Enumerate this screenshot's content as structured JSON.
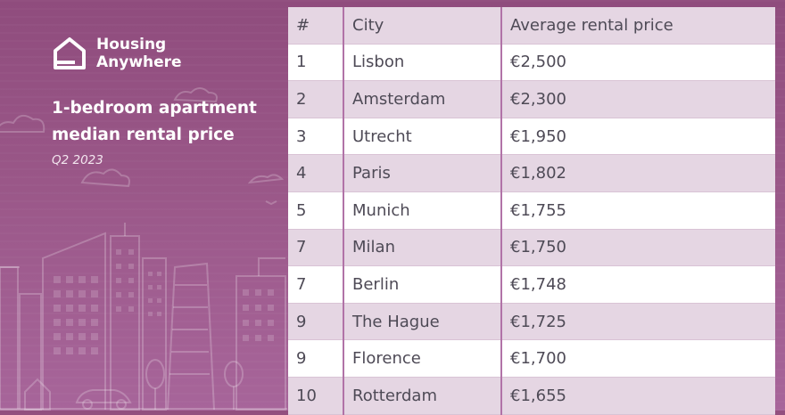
{
  "brand": {
    "name_line1": "Housing",
    "name_line2": "Anywhere",
    "logo_icon": "house-icon"
  },
  "heading": {
    "line1": "1-bedroom apartment",
    "line2": "median rental price",
    "period": "Q2 2023"
  },
  "colors": {
    "background": "#93507f",
    "table_header_bg": "#e5d6e3",
    "table_alt_row_bg": "#e5d6e3",
    "column_divider": "#b173a7",
    "text": "#4e4a56"
  },
  "table": {
    "headers": [
      "#",
      "City",
      "Average rental price"
    ],
    "rows": [
      [
        "1",
        "Lisbon",
        "€2,500"
      ],
      [
        "2",
        "Amsterdam",
        "€2,300"
      ],
      [
        "3",
        "Utrecht",
        "€1,950"
      ],
      [
        "4",
        "Paris",
        "€1,802"
      ],
      [
        "5",
        "Munich",
        "€1,755"
      ],
      [
        "7",
        "Milan",
        "€1,750"
      ],
      [
        "7",
        "Berlin",
        "€1,748"
      ],
      [
        "9",
        "The Hague",
        "€1,725"
      ],
      [
        "9",
        "Florence",
        "€1,700"
      ],
      [
        "10",
        "Rotterdam",
        "€1,655"
      ]
    ]
  }
}
